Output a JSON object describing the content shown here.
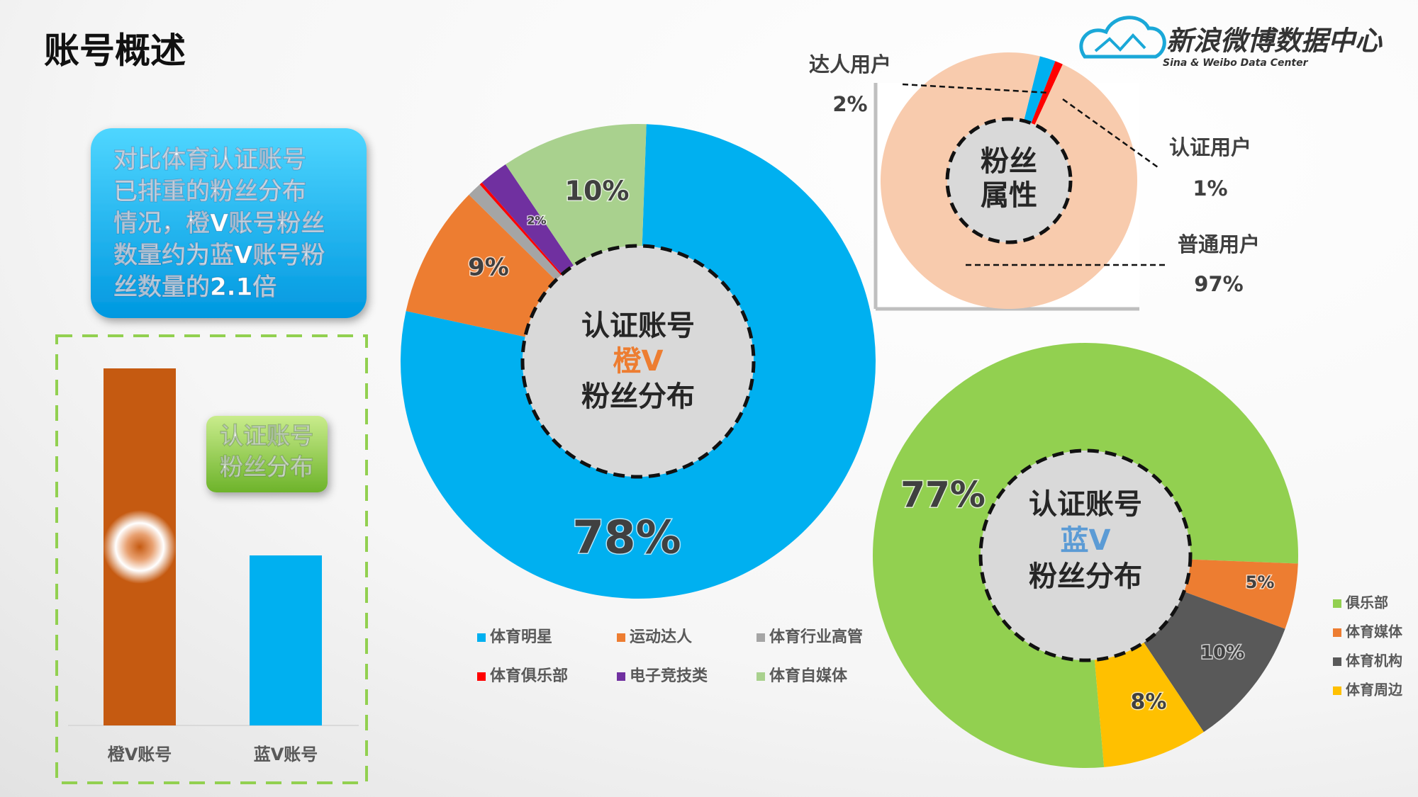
{
  "title": "账号概述",
  "logo": {
    "name": "新浪微博数据中心",
    "subtitle": "Sina & Weibo Data Center"
  },
  "callout": {
    "lines": [
      "对比体育认证账号",
      "已排重的粉丝分布",
      "情况，橙V账号粉丝",
      "数量约为蓝V账号粉",
      "丝数量的2.1倍"
    ]
  },
  "chart_data": [
    {
      "type": "bar",
      "label": [
        "认证账号",
        "粉丝分布"
      ],
      "categories": [
        "橙V账号",
        "蓝V账号"
      ],
      "values": [
        2.1,
        1
      ],
      "colors": [
        "#c55a11",
        "#00b0f0"
      ],
      "ylim": [
        0,
        2.2
      ]
    },
    {
      "type": "donut",
      "center_label": [
        "认证账号",
        "橙V",
        "粉丝分布"
      ],
      "center_label_color": "#ed7d31",
      "categories": [
        "体育明星",
        "运动达人",
        "体育行业高管",
        "体育俱乐部",
        "电子竞技类",
        "体育自媒体"
      ],
      "values": [
        78,
        9,
        1,
        0.2,
        2,
        10
      ],
      "value_labels": [
        "78%",
        "9%",
        null,
        null,
        "2%",
        "10%"
      ],
      "colors": [
        "#00b0f0",
        "#ed7d31",
        "#a5a5a5",
        "#ff0000",
        "#7030a0",
        "#a9d18e"
      ],
      "legend": "bottom"
    },
    {
      "type": "donut",
      "center_label": [
        "粉丝",
        "属性"
      ],
      "categories": [
        "达人用户",
        "认证用户",
        "普通用户"
      ],
      "values": [
        2,
        1,
        97
      ],
      "value_labels": [
        "2%",
        "1%",
        "97%"
      ],
      "colors": [
        "#00b0f0",
        "#ff0000",
        "#f8cbad"
      ]
    },
    {
      "type": "donut",
      "center_label": [
        "认证账号",
        "蓝V",
        "粉丝分布"
      ],
      "center_label_color": "#5b9bd5",
      "categories": [
        "俱乐部",
        "体育媒体",
        "体育机构",
        "体育周边"
      ],
      "values": [
        77,
        5,
        10,
        8
      ],
      "value_labels": [
        "77%",
        "5%",
        "10%",
        "8%"
      ],
      "colors": [
        "#92d050",
        "#ed7d31",
        "#595959",
        "#ffc000"
      ],
      "legend": "right"
    }
  ]
}
